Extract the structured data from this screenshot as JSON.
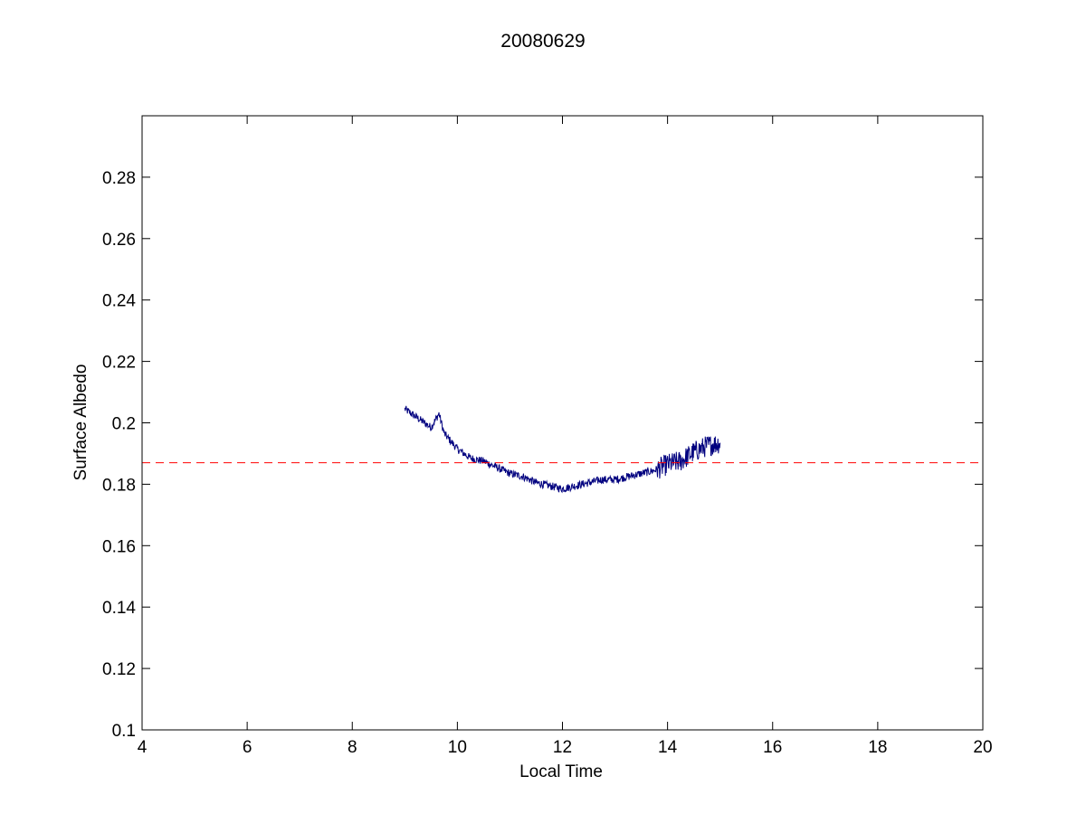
{
  "chart_data": {
    "type": "line",
    "title": "20080629",
    "xlabel": "Local Time",
    "ylabel": "Surface Albedo",
    "xlim": [
      4,
      20
    ],
    "ylim": [
      0.1,
      0.3
    ],
    "xticks": [
      4,
      6,
      8,
      10,
      12,
      14,
      16,
      18,
      20
    ],
    "yticks": [
      0.1,
      0.12,
      0.14,
      0.16,
      0.18,
      0.2,
      0.22,
      0.24,
      0.26,
      0.28
    ],
    "xtick_labels": [
      "4",
      "6",
      "8",
      "10",
      "12",
      "14",
      "16",
      "18",
      "20"
    ],
    "ytick_labels": [
      "0.1",
      "0.12",
      "0.14",
      "0.16",
      "0.18",
      "0.2",
      "0.22",
      "0.24",
      "0.26",
      "0.28"
    ],
    "grid": false,
    "series": [
      {
        "color": "#00007f",
        "style": "solid",
        "x": [
          9.0,
          9.25,
          9.5,
          9.65,
          9.75,
          10.0,
          10.25,
          10.5,
          10.75,
          11.0,
          11.25,
          11.5,
          11.75,
          12.0,
          12.25,
          12.5,
          12.75,
          13.0,
          13.25,
          13.5,
          13.75,
          14.0,
          14.25,
          14.5,
          14.75,
          15.0
        ],
        "y": [
          0.2045,
          0.2015,
          0.1985,
          0.203,
          0.1965,
          0.1915,
          0.1885,
          0.1875,
          0.1855,
          0.1835,
          0.1825,
          0.1805,
          0.1795,
          0.1785,
          0.1795,
          0.1805,
          0.1815,
          0.1815,
          0.1825,
          0.1835,
          0.1845,
          0.1865,
          0.1875,
          0.1905,
          0.1925,
          0.1935
        ]
      },
      {
        "color": "#ff0000",
        "style": "dashed",
        "x": [
          4,
          20
        ],
        "y": [
          0.187,
          0.187
        ]
      }
    ]
  }
}
